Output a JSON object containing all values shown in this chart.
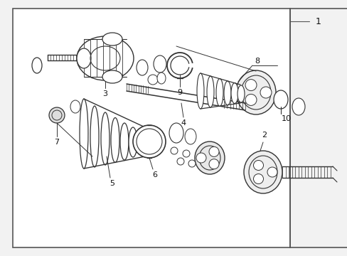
{
  "bg_color": "#f2f2f2",
  "box_bg": "#ffffff",
  "border_color": "#555555",
  "line_color": "#333333",
  "text_color": "#111111",
  "figsize": [
    4.89,
    3.6
  ],
  "dpi": 100,
  "xlim": [
    0,
    489
  ],
  "ylim": [
    0,
    360
  ]
}
